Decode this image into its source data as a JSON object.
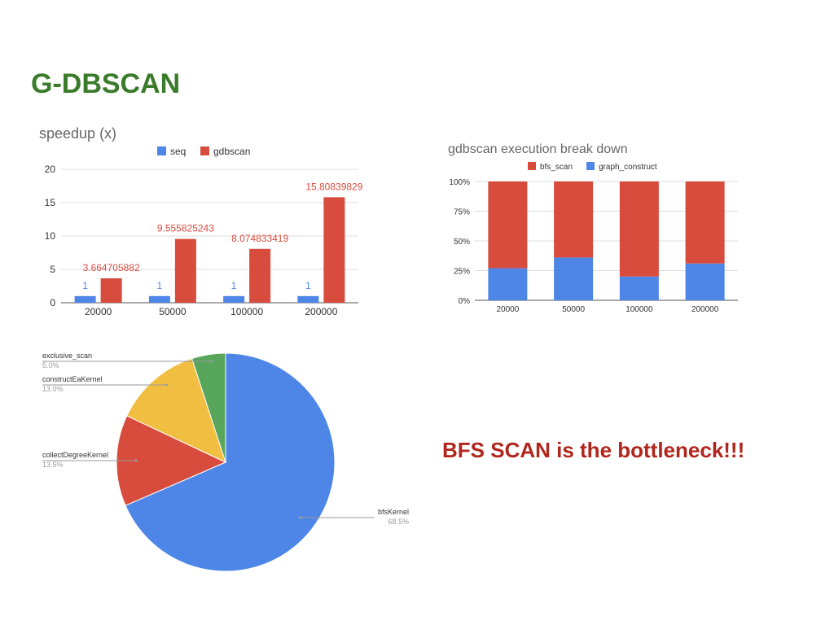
{
  "slide": {
    "title": "G-DBSCAN",
    "callout": "BFS SCAN is the bottleneck!!!"
  },
  "chart_data": [
    {
      "type": "bar",
      "title": "speedup (x)",
      "categories": [
        "20000",
        "50000",
        "100000",
        "200000"
      ],
      "series": [
        {
          "name": "seq",
          "color": "#4e86e8",
          "values": [
            1,
            1,
            1,
            1
          ],
          "labels": [
            "1",
            "1",
            "1",
            "1"
          ]
        },
        {
          "name": "gdbscan",
          "color": "#d84c3e",
          "values": [
            3.664705882,
            9.555825243,
            8.074833419,
            15.80839829
          ],
          "labels": [
            "3.664705882",
            "9.555825243",
            "8.074833419",
            "15.80839829"
          ]
        }
      ],
      "ylim": [
        0,
        20
      ],
      "yticks": [
        "0",
        "5",
        "10",
        "15",
        "20"
      ],
      "legend": "top",
      "grid": true
    },
    {
      "type": "bar",
      "stacked": "percent",
      "title": "gdbscan execution break down",
      "categories": [
        "20000",
        "50000",
        "100000",
        "200000"
      ],
      "series": [
        {
          "name": "bfs_scan",
          "color": "#d84c3e",
          "values": [
            73,
            64,
            80,
            69
          ]
        },
        {
          "name": "graph_construct",
          "color": "#4e86e8",
          "values": [
            27,
            36,
            20,
            31
          ]
        }
      ],
      "ylim": [
        0,
        100
      ],
      "yticks": [
        "0%",
        "25%",
        "50%",
        "75%",
        "100%"
      ],
      "legend": "top",
      "grid": true
    },
    {
      "type": "pie",
      "slices": [
        {
          "label": "bfsKernel",
          "pct_text": "68.5%",
          "value": 68.5,
          "color": "#4e86e8"
        },
        {
          "label": "collectDegreeKernel",
          "pct_text": "13.5%",
          "value": 13.5,
          "color": "#d84c3e"
        },
        {
          "label": "constructEaKernel",
          "pct_text": "13.0%",
          "value": 13.0,
          "color": "#f0bf41"
        },
        {
          "label": "exclusive_scan",
          "pct_text": "5.0%",
          "value": 5.0,
          "color": "#58a55c"
        }
      ]
    }
  ]
}
